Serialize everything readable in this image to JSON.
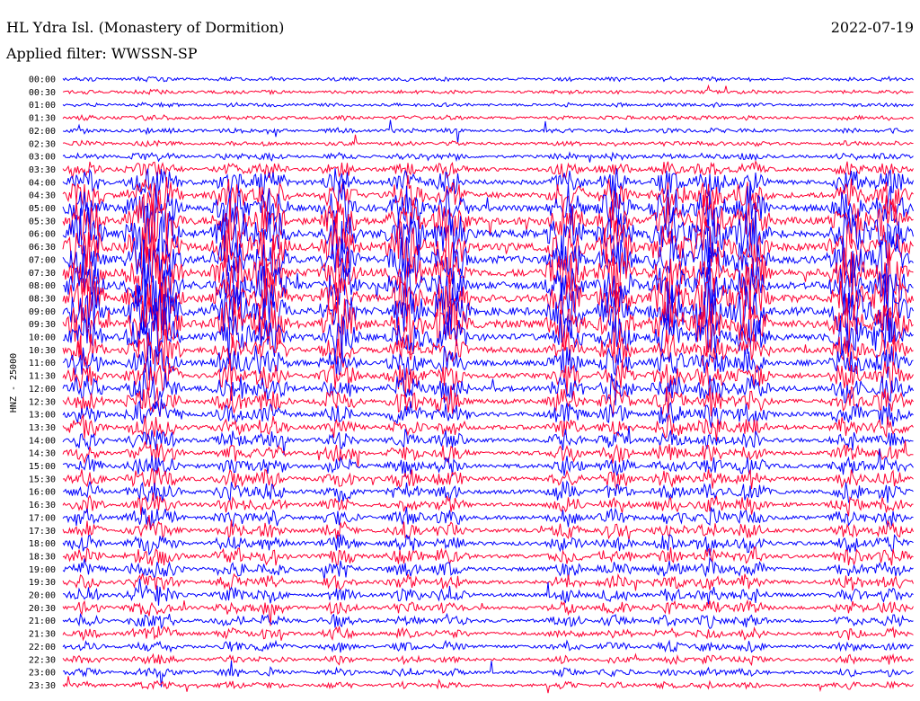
{
  "header": {
    "station": "HL Ydra Isl. (Monastery of Dormition)",
    "date": "2022-07-19",
    "filter": "Applied filter: WWSSN-SP"
  },
  "chart_data": {
    "type": "line",
    "title": "HL Ydra Isl. (Monastery of Dormition)",
    "ylabel": "HNZ - 25000",
    "colors": {
      "odd_rows": "#0000ff",
      "even_rows": "#ff0033"
    },
    "grid": false,
    "rows": [
      "00:00",
      "00:30",
      "01:00",
      "01:30",
      "02:00",
      "02:30",
      "03:00",
      "03:30",
      "04:00",
      "04:30",
      "05:00",
      "05:30",
      "06:00",
      "06:30",
      "07:00",
      "07:30",
      "08:00",
      "08:30",
      "09:00",
      "09:30",
      "10:00",
      "10:30",
      "11:00",
      "11:30",
      "12:00",
      "12:30",
      "13:00",
      "13:30",
      "14:00",
      "14:30",
      "15:00",
      "15:30",
      "16:00",
      "16:30",
      "17:00",
      "17:30",
      "18:00",
      "18:30",
      "19:00",
      "19:30",
      "20:00",
      "20:30",
      "21:00",
      "21:30",
      "22:00",
      "22:30",
      "23:00",
      "23:30"
    ],
    "row_activity": [
      0.04,
      0.04,
      0.04,
      0.05,
      0.06,
      0.06,
      0.1,
      0.25,
      0.45,
      0.6,
      0.75,
      0.9,
      1.0,
      1.0,
      0.95,
      0.95,
      0.95,
      1.0,
      1.0,
      1.0,
      0.8,
      0.6,
      0.55,
      0.55,
      0.5,
      0.45,
      0.4,
      0.35,
      0.3,
      0.3,
      0.3,
      0.3,
      0.3,
      0.28,
      0.28,
      0.28,
      0.28,
      0.3,
      0.28,
      0.25,
      0.25,
      0.22,
      0.2,
      0.18,
      0.15,
      0.12,
      0.12,
      0.1
    ]
  }
}
